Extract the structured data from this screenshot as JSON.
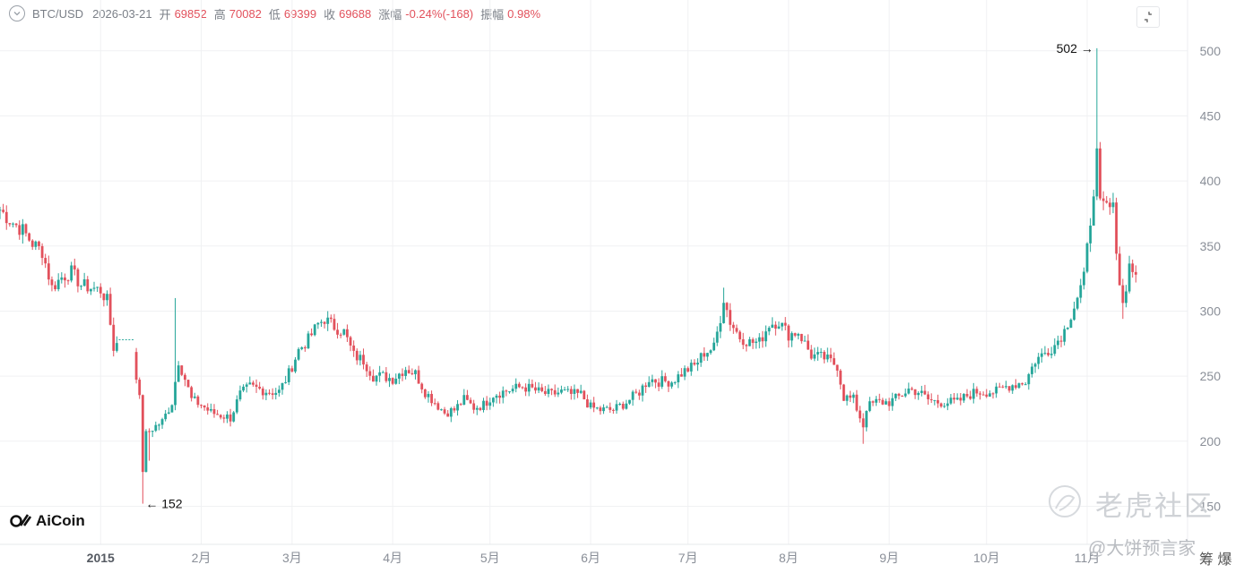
{
  "header": {
    "symbol": "BTC/USD",
    "date": "2026-03-21",
    "open_label": "开",
    "open_value": "69852",
    "high_label": "高",
    "high_value": "70082",
    "low_label": "低",
    "low_value": "69399",
    "close_label": "收",
    "close_value": "69688",
    "change_label": "涨幅",
    "change_value": "-0.24%(-168)",
    "amplitude_label": "振幅",
    "amplitude_value": "0.98%"
  },
  "colors": {
    "up": "#26a69a",
    "down": "#e2515c",
    "grid": "#f0f1f3",
    "axis_text": "#8a8f98"
  },
  "brand": "AiCoin",
  "watermark": {
    "site": "老虎社区",
    "handle": "@大饼预言家",
    "corner": "筹 爆"
  },
  "chart_data": {
    "type": "candlestick",
    "title": "",
    "ylim": [
      140,
      515
    ],
    "y_ticks": [
      150,
      200,
      250,
      300,
      350,
      400,
      450,
      500
    ],
    "x_tick_labels": [
      "2015",
      "2月",
      "3月",
      "4月",
      "5月",
      "6月",
      "7月",
      "8月",
      "9月",
      "10月",
      "11月"
    ],
    "x_tick_dates": [
      "2015-01-01",
      "2015-02-01",
      "2015-03-01",
      "2015-04-01",
      "2015-05-01",
      "2015-06-01",
      "2015-07-01",
      "2015-08-01",
      "2015-09-01",
      "2015-10-01",
      "2015-11-01"
    ],
    "date_range": [
      "2014-12-01",
      "2015-11-30"
    ],
    "annotations": [
      {
        "text": "152",
        "date": "2015-01-14",
        "value": 152,
        "arrow": "left"
      },
      {
        "text": "502",
        "date": "2015-11-04",
        "value": 502,
        "arrow": "right"
      }
    ],
    "anchors": [
      [
        "2014-12-01",
        378
      ],
      [
        "2014-12-04",
        370
      ],
      [
        "2014-12-08",
        362
      ],
      [
        "2014-12-11",
        352
      ],
      [
        "2014-12-14",
        346
      ],
      [
        "2014-12-17",
        318
      ],
      [
        "2014-12-20",
        326
      ],
      [
        "2014-12-23",
        330
      ],
      [
        "2014-12-26",
        320
      ],
      [
        "2014-12-29",
        318
      ],
      [
        "2015-01-01",
        316
      ],
      [
        "2015-01-03",
        308
      ],
      [
        "2015-01-05",
        272
      ],
      [
        "2015-01-07",
        278
      ],
      [
        "2015-01-09",
        278
      ],
      [
        "2015-01-11",
        270
      ],
      [
        "2015-01-13",
        232
      ],
      [
        "2015-01-14",
        178
      ],
      [
        "2015-01-15",
        205
      ],
      [
        "2015-01-17",
        210
      ],
      [
        "2015-01-20",
        215
      ],
      [
        "2015-01-23",
        230
      ],
      [
        "2015-01-25",
        262
      ],
      [
        "2015-01-27",
        248
      ],
      [
        "2015-01-29",
        232
      ],
      [
        "2015-02-01",
        228
      ],
      [
        "2015-02-04",
        222
      ],
      [
        "2015-02-07",
        220
      ],
      [
        "2015-02-10",
        218
      ],
      [
        "2015-02-13",
        236
      ],
      [
        "2015-02-16",
        242
      ],
      [
        "2015-02-19",
        240
      ],
      [
        "2015-02-22",
        238
      ],
      [
        "2015-02-25",
        238
      ],
      [
        "2015-02-28",
        252
      ],
      [
        "2015-03-03",
        270
      ],
      [
        "2015-03-06",
        278
      ],
      [
        "2015-03-09",
        290
      ],
      [
        "2015-03-11",
        294
      ],
      [
        "2015-03-14",
        288
      ],
      [
        "2015-03-17",
        284
      ],
      [
        "2015-03-20",
        266
      ],
      [
        "2015-03-23",
        262
      ],
      [
        "2015-03-26",
        250
      ],
      [
        "2015-03-29",
        250
      ],
      [
        "2015-04-01",
        248
      ],
      [
        "2015-04-05",
        256
      ],
      [
        "2015-04-08",
        252
      ],
      [
        "2015-04-11",
        238
      ],
      [
        "2015-04-14",
        230
      ],
      [
        "2015-04-17",
        222
      ],
      [
        "2015-04-20",
        224
      ],
      [
        "2015-04-23",
        232
      ],
      [
        "2015-04-26",
        226
      ],
      [
        "2015-04-29",
        228
      ],
      [
        "2015-05-02",
        236
      ],
      [
        "2015-05-05",
        238
      ],
      [
        "2015-05-08",
        240
      ],
      [
        "2015-05-11",
        242
      ],
      [
        "2015-05-14",
        240
      ],
      [
        "2015-05-17",
        237
      ],
      [
        "2015-05-20",
        236
      ],
      [
        "2015-05-23",
        238
      ],
      [
        "2015-05-26",
        236
      ],
      [
        "2015-05-29",
        236
      ],
      [
        "2015-06-01",
        226
      ],
      [
        "2015-06-04",
        224
      ],
      [
        "2015-06-08",
        224
      ],
      [
        "2015-06-12",
        230
      ],
      [
        "2015-06-16",
        238
      ],
      [
        "2015-06-19",
        248
      ],
      [
        "2015-06-22",
        246
      ],
      [
        "2015-06-26",
        246
      ],
      [
        "2015-06-30",
        254
      ],
      [
        "2015-07-03",
        258
      ],
      [
        "2015-07-06",
        268
      ],
      [
        "2015-07-09",
        272
      ],
      [
        "2015-07-11",
        295
      ],
      [
        "2015-07-12",
        310
      ],
      [
        "2015-07-14",
        292
      ],
      [
        "2015-07-17",
        280
      ],
      [
        "2015-07-20",
        276
      ],
      [
        "2015-07-23",
        276
      ],
      [
        "2015-07-26",
        290
      ],
      [
        "2015-07-29",
        292
      ],
      [
        "2015-08-01",
        282
      ],
      [
        "2015-08-04",
        284
      ],
      [
        "2015-08-08",
        266
      ],
      [
        "2015-08-12",
        264
      ],
      [
        "2015-08-16",
        258
      ],
      [
        "2015-08-18",
        234
      ],
      [
        "2015-08-21",
        232
      ],
      [
        "2015-08-24",
        212
      ],
      [
        "2015-08-25",
        226
      ],
      [
        "2015-08-28",
        230
      ],
      [
        "2015-09-01",
        230
      ],
      [
        "2015-09-04",
        234
      ],
      [
        "2015-09-07",
        240
      ],
      [
        "2015-09-10",
        238
      ],
      [
        "2015-09-13",
        232
      ],
      [
        "2015-09-16",
        230
      ],
      [
        "2015-09-19",
        230
      ],
      [
        "2015-09-22",
        230
      ],
      [
        "2015-09-25",
        235
      ],
      [
        "2015-09-28",
        238
      ],
      [
        "2015-10-01",
        238
      ],
      [
        "2015-10-04",
        238
      ],
      [
        "2015-10-07",
        242
      ],
      [
        "2015-10-10",
        244
      ],
      [
        "2015-10-13",
        246
      ],
      [
        "2015-10-16",
        262
      ],
      [
        "2015-10-19",
        268
      ],
      [
        "2015-10-22",
        274
      ],
      [
        "2015-10-25",
        285
      ],
      [
        "2015-10-28",
        304
      ],
      [
        "2015-10-31",
        325
      ],
      [
        "2015-11-02",
        370
      ],
      [
        "2015-11-04",
        420
      ],
      [
        "2015-11-05",
        380
      ],
      [
        "2015-11-07",
        380
      ],
      [
        "2015-11-09",
        378
      ],
      [
        "2015-11-11",
        322
      ],
      [
        "2015-11-12",
        305
      ],
      [
        "2015-11-14",
        335
      ],
      [
        "2015-11-16",
        328
      ]
    ],
    "spikes": [
      {
        "date": "2015-01-14",
        "low": 152
      },
      {
        "date": "2015-01-16",
        "low": 185
      },
      {
        "date": "2015-01-24",
        "high": 310
      },
      {
        "date": "2015-01-10",
        "high": 305
      },
      {
        "date": "2015-07-12",
        "high": 318
      },
      {
        "date": "2015-08-24",
        "low": 198
      },
      {
        "date": "2015-11-04",
        "high": 502
      },
      {
        "date": "2015-11-12",
        "low": 294
      }
    ],
    "flat_dashed": {
      "start": "2015-01-07",
      "end": "2015-01-11",
      "value": 278
    }
  }
}
